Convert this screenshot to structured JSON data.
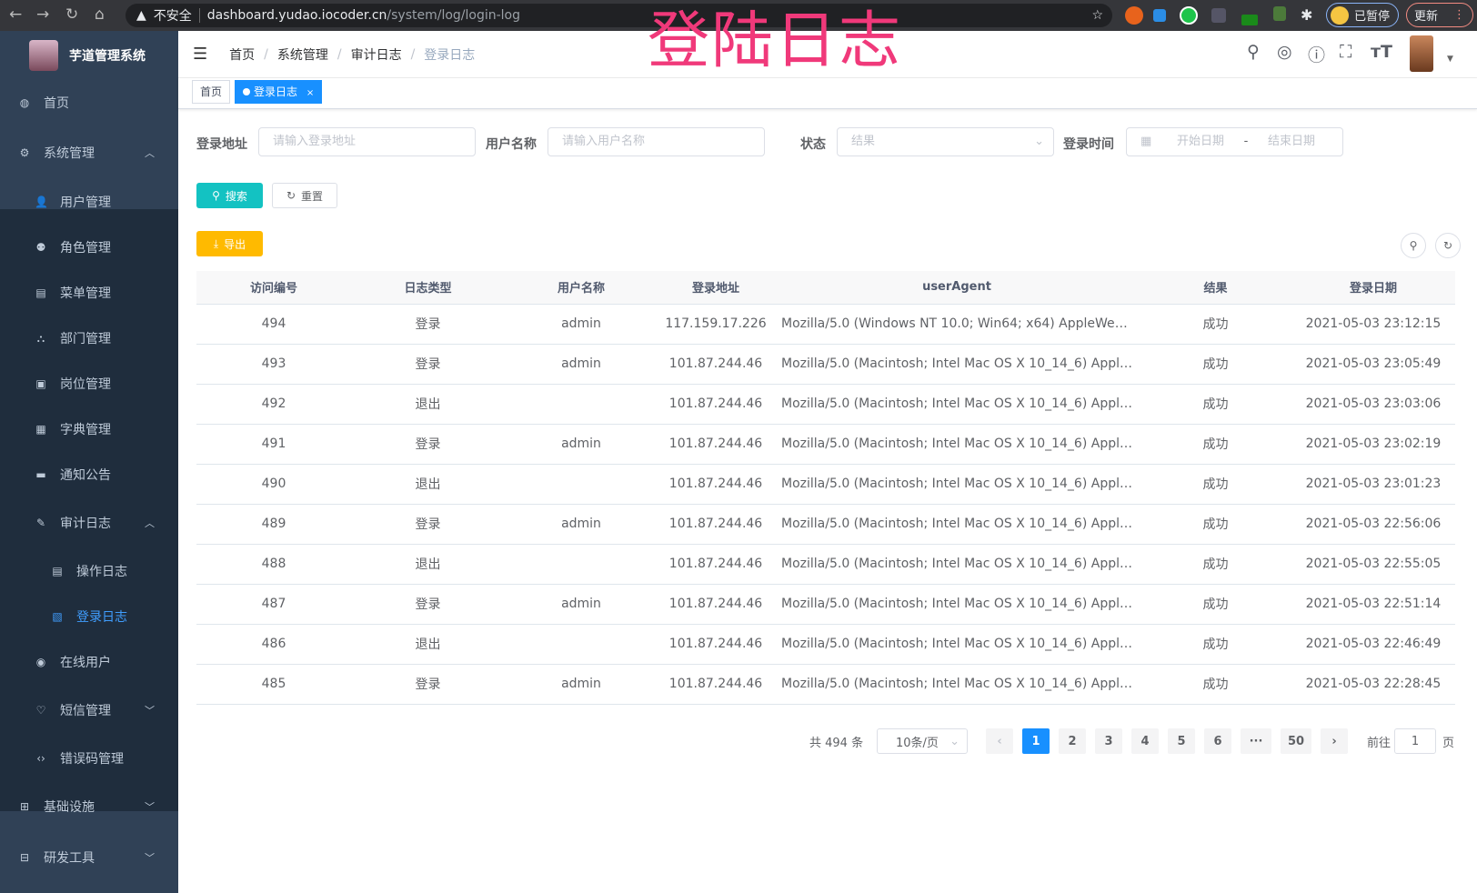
{
  "browser": {
    "security": "不安全",
    "url_host": "dashboard.yudao.iocoder.cn",
    "url_path": "/system/log/login-log",
    "paused": "已暂停",
    "update": "更新"
  },
  "overlay_title": "登陆日志",
  "sidebar": {
    "title": "芋道管理系统",
    "items": [
      {
        "label": "首页",
        "icon": "dashboard-icon"
      },
      {
        "label": "系统管理",
        "icon": "gear-icon",
        "expanded": true
      },
      {
        "label": "用户管理",
        "icon": "user-icon"
      },
      {
        "label": "角色管理",
        "icon": "peoples-icon"
      },
      {
        "label": "菜单管理",
        "icon": "tree-table-icon"
      },
      {
        "label": "部门管理",
        "icon": "tree-icon"
      },
      {
        "label": "岗位管理",
        "icon": "post-icon"
      },
      {
        "label": "字典管理",
        "icon": "dict-icon"
      },
      {
        "label": "通知公告",
        "icon": "message-icon"
      },
      {
        "label": "审计日志",
        "icon": "log-icon",
        "expanded": true
      },
      {
        "label": "操作日志",
        "icon": "form-icon"
      },
      {
        "label": "登录日志",
        "icon": "logininfor-icon",
        "active": true
      },
      {
        "label": "在线用户",
        "icon": "online-icon"
      },
      {
        "label": "短信管理",
        "icon": "validCode-icon"
      },
      {
        "label": "错误码管理",
        "icon": "code-icon"
      },
      {
        "label": "基础设施",
        "icon": "monitor-icon"
      },
      {
        "label": "研发工具",
        "icon": "tool-icon"
      }
    ]
  },
  "breadcrumb": [
    "首页",
    "系统管理",
    "审计日志",
    "登录日志"
  ],
  "tags": {
    "home": "首页",
    "active": "登录日志"
  },
  "filters": {
    "ip_label": "登录地址",
    "ip_placeholder": "请输入登录地址",
    "user_label": "用户名称",
    "user_placeholder": "请输入用户名称",
    "status_label": "状态",
    "status_placeholder": "结果",
    "time_label": "登录时间",
    "start_placeholder": "开始日期",
    "end_placeholder": "结束日期",
    "range_sep": "-"
  },
  "buttons": {
    "search": "搜索",
    "reset": "重置",
    "export": "导出"
  },
  "colors": {
    "primary": "#1890ff",
    "search": "#13c2c2",
    "export": "#ffba00",
    "sidebar": "#304156",
    "title": "#f0397a"
  },
  "table": {
    "columns": [
      "访问编号",
      "日志类型",
      "用户名称",
      "登录地址",
      "userAgent",
      "结果",
      "登录日期"
    ],
    "rows": [
      [
        "494",
        "登录",
        "admin",
        "117.159.17.226",
        "Mozilla/5.0 (Windows NT 10.0; Win64; x64) AppleWebKit...",
        "成功",
        "2021-05-03 23:12:15"
      ],
      [
        "493",
        "登录",
        "admin",
        "101.87.244.46",
        "Mozilla/5.0 (Macintosh; Intel Mac OS X 10_14_6) AppleWe...",
        "成功",
        "2021-05-03 23:05:49"
      ],
      [
        "492",
        "退出",
        "",
        "101.87.244.46",
        "Mozilla/5.0 (Macintosh; Intel Mac OS X 10_14_6) AppleWe...",
        "成功",
        "2021-05-03 23:03:06"
      ],
      [
        "491",
        "登录",
        "admin",
        "101.87.244.46",
        "Mozilla/5.0 (Macintosh; Intel Mac OS X 10_14_6) AppleWe...",
        "成功",
        "2021-05-03 23:02:19"
      ],
      [
        "490",
        "退出",
        "",
        "101.87.244.46",
        "Mozilla/5.0 (Macintosh; Intel Mac OS X 10_14_6) AppleWe...",
        "成功",
        "2021-05-03 23:01:23"
      ],
      [
        "489",
        "登录",
        "admin",
        "101.87.244.46",
        "Mozilla/5.0 (Macintosh; Intel Mac OS X 10_14_6) AppleWe...",
        "成功",
        "2021-05-03 22:56:06"
      ],
      [
        "488",
        "退出",
        "",
        "101.87.244.46",
        "Mozilla/5.0 (Macintosh; Intel Mac OS X 10_14_6) AppleWe...",
        "成功",
        "2021-05-03 22:55:05"
      ],
      [
        "487",
        "登录",
        "admin",
        "101.87.244.46",
        "Mozilla/5.0 (Macintosh; Intel Mac OS X 10_14_6) AppleWe...",
        "成功",
        "2021-05-03 22:51:14"
      ],
      [
        "486",
        "退出",
        "",
        "101.87.244.46",
        "Mozilla/5.0 (Macintosh; Intel Mac OS X 10_14_6) AppleWe...",
        "成功",
        "2021-05-03 22:46:49"
      ],
      [
        "485",
        "登录",
        "admin",
        "101.87.244.46",
        "Mozilla/5.0 (Macintosh; Intel Mac OS X 10_14_6) AppleWe...",
        "成功",
        "2021-05-03 22:28:45"
      ]
    ]
  },
  "pagination": {
    "total": "共 494 条",
    "page_size": "10条/页",
    "pages": [
      "1",
      "2",
      "3",
      "4",
      "5",
      "6",
      "···",
      "50"
    ],
    "current": "1",
    "goto_label": "前往",
    "goto_value": "1",
    "goto_suffix": "页"
  }
}
